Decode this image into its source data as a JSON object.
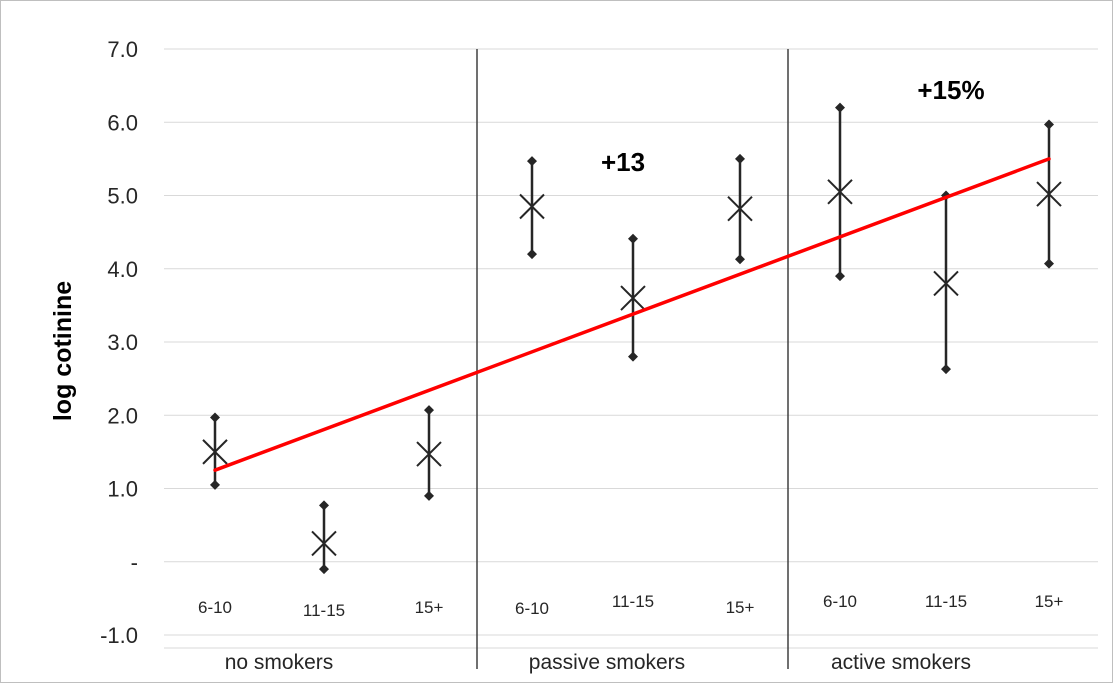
{
  "chart_data": {
    "type": "scatter",
    "ylabel": "log cotinine",
    "ylim": [
      -1.0,
      7.0
    ],
    "y_ticks": [
      "7.0",
      "6.0",
      "5.0",
      "4.0",
      "3.0",
      "2.0",
      "1.0",
      "-",
      "-1.0"
    ],
    "grid": true,
    "groups": [
      "no smokers",
      "passive smokers",
      "active smokers"
    ],
    "categories": [
      "6-10",
      "11-15",
      "15+",
      "6-10",
      "11-15",
      "15+",
      "6-10",
      "11-15",
      "15+"
    ],
    "points": [
      {
        "x": 1,
        "mean": 1.5,
        "low": 1.05,
        "high": 1.97
      },
      {
        "x": 2,
        "mean": 0.25,
        "low": -0.1,
        "high": 0.77
      },
      {
        "x": 3,
        "mean": 1.47,
        "low": 0.9,
        "high": 2.07
      },
      {
        "x": 4,
        "mean": 4.85,
        "low": 4.2,
        "high": 5.47
      },
      {
        "x": 5,
        "mean": 3.6,
        "low": 2.8,
        "high": 4.41
      },
      {
        "x": 6,
        "mean": 4.82,
        "low": 4.13,
        "high": 5.5
      },
      {
        "x": 7,
        "mean": 5.05,
        "low": 3.9,
        "high": 6.2
      },
      {
        "x": 8,
        "mean": 3.8,
        "low": 2.63,
        "high": 5.0
      },
      {
        "x": 9,
        "mean": 5.02,
        "low": 4.07,
        "high": 5.97
      }
    ],
    "trend_line": {
      "x_start": 1,
      "y_start": 1.25,
      "x_end": 9,
      "y_end": 5.5,
      "color": "#ff0000"
    },
    "annotations": [
      "+13",
      "+15%"
    ],
    "colors": {
      "marker": "#262626",
      "grid": "#d9d9d9",
      "divider": "#404040"
    }
  }
}
